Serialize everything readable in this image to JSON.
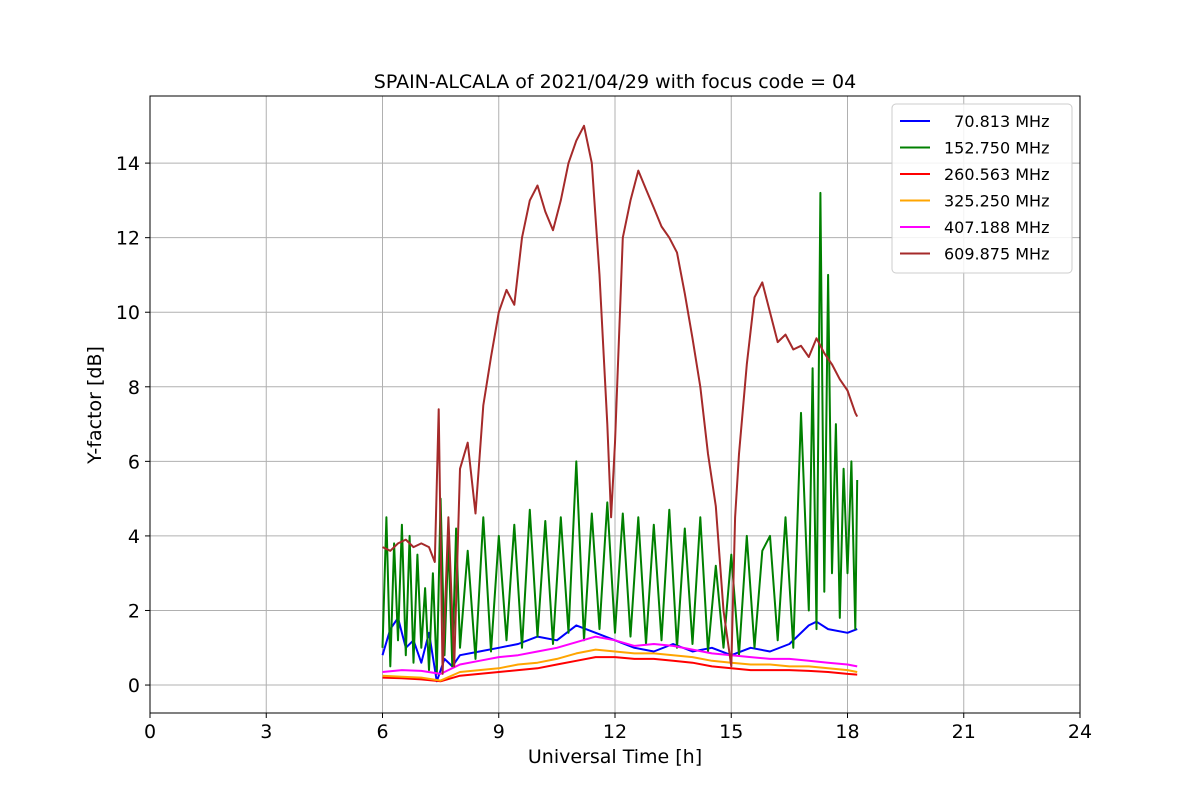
{
  "chart_data": {
    "type": "line",
    "title": "SPAIN-ALCALA of 2021/04/29 with focus code = 04",
    "xlabel": "Universal Time [h]",
    "ylabel": "Y-factor [dB]",
    "xlim": [
      0,
      24
    ],
    "ylim": [
      -0.75,
      15.8
    ],
    "xticks": [
      0,
      3,
      6,
      9,
      12,
      15,
      18,
      21,
      24
    ],
    "yticks": [
      0,
      2,
      4,
      6,
      8,
      10,
      12,
      14
    ],
    "grid": true,
    "legend_position": "top-right",
    "series": [
      {
        "name": "  70.813 MHz",
        "color": "#0000ff",
        "x": [
          6.0,
          6.2,
          6.4,
          6.6,
          6.8,
          7.0,
          7.2,
          7.4,
          7.6,
          7.8,
          8.0,
          8.5,
          9.0,
          9.5,
          10.0,
          10.5,
          11.0,
          11.5,
          12.0,
          12.5,
          13.0,
          13.5,
          14.0,
          14.5,
          15.0,
          15.5,
          16.0,
          16.5,
          17.0,
          17.2,
          17.5,
          18.0,
          18.25
        ],
        "y": [
          0.8,
          1.5,
          1.8,
          1.0,
          1.2,
          0.6,
          1.4,
          0.1,
          0.7,
          0.5,
          0.8,
          0.9,
          1.0,
          1.1,
          1.3,
          1.2,
          1.6,
          1.4,
          1.2,
          1.0,
          0.9,
          1.1,
          0.9,
          1.0,
          0.8,
          1.0,
          0.9,
          1.1,
          1.6,
          1.7,
          1.5,
          1.4,
          1.5
        ]
      },
      {
        "name": "152.750 MHz",
        "color": "#008000",
        "x": [
          6.0,
          6.1,
          6.2,
          6.3,
          6.4,
          6.5,
          6.6,
          6.7,
          6.8,
          6.9,
          7.0,
          7.1,
          7.2,
          7.3,
          7.4,
          7.5,
          7.6,
          7.7,
          7.8,
          7.9,
          8.0,
          8.2,
          8.4,
          8.6,
          8.8,
          9.0,
          9.2,
          9.4,
          9.6,
          9.8,
          10.0,
          10.2,
          10.4,
          10.6,
          10.8,
          11.0,
          11.2,
          11.4,
          11.6,
          11.8,
          12.0,
          12.2,
          12.4,
          12.6,
          12.8,
          13.0,
          13.2,
          13.4,
          13.6,
          13.8,
          14.0,
          14.2,
          14.4,
          14.6,
          14.8,
          15.0,
          15.2,
          15.4,
          15.6,
          15.8,
          16.0,
          16.2,
          16.4,
          16.6,
          16.8,
          17.0,
          17.1,
          17.2,
          17.3,
          17.4,
          17.5,
          17.6,
          17.7,
          17.8,
          17.9,
          18.0,
          18.1,
          18.2,
          18.25
        ],
        "y": [
          1.0,
          4.5,
          0.5,
          3.8,
          1.2,
          4.3,
          0.8,
          4.0,
          0.6,
          3.5,
          1.0,
          2.6,
          0.4,
          3.0,
          0.3,
          5.0,
          0.8,
          3.9,
          0.5,
          4.2,
          1.0,
          3.6,
          0.7,
          4.5,
          0.9,
          4.0,
          1.2,
          4.3,
          1.0,
          4.7,
          1.3,
          4.4,
          1.1,
          4.5,
          1.4,
          6.0,
          1.2,
          4.6,
          1.5,
          4.9,
          1.4,
          4.6,
          1.3,
          4.5,
          1.1,
          4.3,
          1.2,
          4.7,
          1.0,
          4.2,
          1.1,
          4.5,
          0.9,
          3.2,
          1.0,
          3.5,
          0.8,
          4.0,
          1.0,
          3.6,
          4.0,
          1.2,
          4.5,
          1.0,
          7.3,
          2.0,
          8.5,
          1.5,
          13.2,
          2.5,
          11.0,
          3.0,
          7.0,
          1.8,
          5.8,
          3.0,
          6.0,
          1.5,
          5.5
        ]
      },
      {
        "name": "260.563 MHz",
        "color": "#ff0000",
        "x": [
          6.0,
          6.5,
          7.0,
          7.5,
          8.0,
          8.5,
          9.0,
          9.5,
          10.0,
          10.5,
          11.0,
          11.5,
          12.0,
          12.5,
          13.0,
          13.5,
          14.0,
          14.5,
          15.0,
          15.5,
          16.0,
          16.5,
          17.0,
          17.5,
          18.0,
          18.25
        ],
        "y": [
          0.2,
          0.18,
          0.15,
          0.1,
          0.25,
          0.3,
          0.35,
          0.4,
          0.45,
          0.55,
          0.65,
          0.75,
          0.75,
          0.7,
          0.7,
          0.65,
          0.6,
          0.5,
          0.45,
          0.4,
          0.4,
          0.4,
          0.38,
          0.35,
          0.3,
          0.28
        ]
      },
      {
        "name": "325.250 MHz",
        "color": "#ffa500",
        "x": [
          6.0,
          6.5,
          7.0,
          7.5,
          8.0,
          8.5,
          9.0,
          9.5,
          10.0,
          10.5,
          11.0,
          11.5,
          12.0,
          12.5,
          13.0,
          13.5,
          14.0,
          14.5,
          15.0,
          15.5,
          16.0,
          16.5,
          17.0,
          17.5,
          18.0,
          18.25
        ],
        "y": [
          0.25,
          0.22,
          0.2,
          0.12,
          0.35,
          0.4,
          0.45,
          0.55,
          0.6,
          0.7,
          0.85,
          0.95,
          0.9,
          0.85,
          0.85,
          0.8,
          0.75,
          0.65,
          0.6,
          0.55,
          0.55,
          0.5,
          0.5,
          0.45,
          0.4,
          0.35
        ]
      },
      {
        "name": "407.188 MHz",
        "color": "#ff00ff",
        "x": [
          6.0,
          6.5,
          7.0,
          7.5,
          8.0,
          8.5,
          9.0,
          9.5,
          10.0,
          10.5,
          11.0,
          11.5,
          12.0,
          12.5,
          13.0,
          13.5,
          14.0,
          14.5,
          15.0,
          15.5,
          16.0,
          16.5,
          17.0,
          17.5,
          18.0,
          18.25
        ],
        "y": [
          0.35,
          0.4,
          0.38,
          0.3,
          0.55,
          0.65,
          0.75,
          0.8,
          0.9,
          1.0,
          1.15,
          1.3,
          1.2,
          1.05,
          1.1,
          1.05,
          0.95,
          0.85,
          0.8,
          0.75,
          0.7,
          0.7,
          0.65,
          0.6,
          0.55,
          0.5
        ]
      },
      {
        "name": "609.875 MHz",
        "color": "#a52a2a",
        "x": [
          6.0,
          6.2,
          6.4,
          6.6,
          6.8,
          7.0,
          7.2,
          7.35,
          7.45,
          7.55,
          7.7,
          7.85,
          8.0,
          8.2,
          8.4,
          8.6,
          8.8,
          9.0,
          9.2,
          9.4,
          9.6,
          9.8,
          10.0,
          10.2,
          10.4,
          10.6,
          10.8,
          11.0,
          11.2,
          11.4,
          11.6,
          11.8,
          11.9,
          12.0,
          12.2,
          12.4,
          12.6,
          12.8,
          13.0,
          13.2,
          13.4,
          13.6,
          13.8,
          14.0,
          14.2,
          14.4,
          14.6,
          14.8,
          15.0,
          15.1,
          15.2,
          15.4,
          15.6,
          15.8,
          16.0,
          16.2,
          16.4,
          16.6,
          16.8,
          17.0,
          17.2,
          17.4,
          17.6,
          17.8,
          18.0,
          18.2,
          18.25
        ],
        "y": [
          3.7,
          3.6,
          3.8,
          3.9,
          3.7,
          3.8,
          3.7,
          3.3,
          7.4,
          0.3,
          4.5,
          0.5,
          5.8,
          6.5,
          4.6,
          7.5,
          8.8,
          10.0,
          10.6,
          10.2,
          12.0,
          13.0,
          13.4,
          12.7,
          12.2,
          13.0,
          14.0,
          14.6,
          15.0,
          14.0,
          11.0,
          7.0,
          4.5,
          6.5,
          12.0,
          13.0,
          13.8,
          13.3,
          12.8,
          12.3,
          12.0,
          11.6,
          10.5,
          9.3,
          8.0,
          6.2,
          4.8,
          2.0,
          0.5,
          4.5,
          6.2,
          8.6,
          10.4,
          10.8,
          10.0,
          9.2,
          9.4,
          9.0,
          9.1,
          8.8,
          9.3,
          8.9,
          8.6,
          8.2,
          7.9,
          7.3,
          7.2
        ]
      }
    ]
  }
}
